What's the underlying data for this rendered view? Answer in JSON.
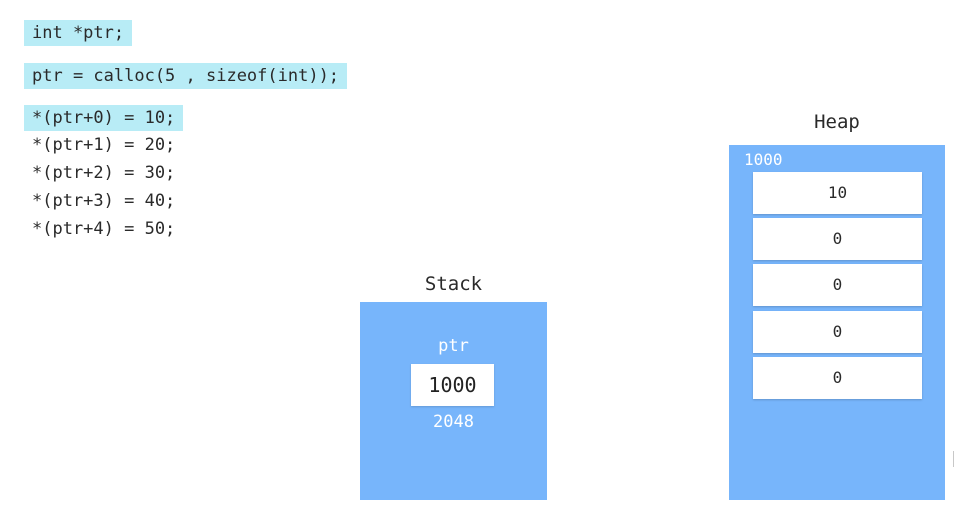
{
  "code": {
    "lines": [
      "int *ptr;",
      "ptr = calloc(5 , sizeof(int));",
      "*(ptr+0) = 10;",
      "*(ptr+1) = 20;",
      "*(ptr+2) = 30;",
      "*(ptr+3) = 40;",
      "*(ptr+4) = 50;"
    ],
    "highlight_color": "#b8ecf6"
  },
  "stack": {
    "title": "Stack",
    "var_name": "ptr",
    "var_value": "1000",
    "var_address": "2048",
    "color": "#77b5fb"
  },
  "heap": {
    "title": "Heap",
    "base_address": "1000",
    "cells": [
      "10",
      "0",
      "0",
      "0",
      "0"
    ],
    "color": "#77b5fb"
  }
}
